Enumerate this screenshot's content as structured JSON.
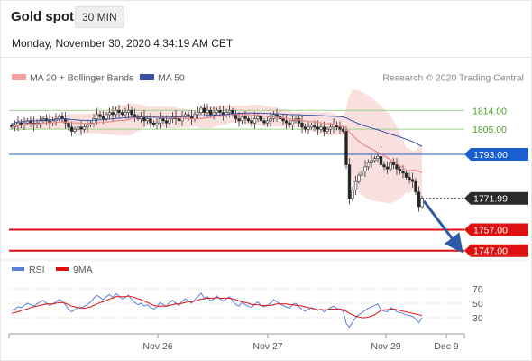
{
  "header": {
    "title": "Gold spot",
    "timeframe": "30 MIN",
    "datetime": "Monday, November 30, 2020 4:34:19 AM CET"
  },
  "legend": {
    "ma20": "MA 20 + Bollinger Bands",
    "ma50": "MA 50",
    "credit": "Research © 2020 Trading Central",
    "rsi": "RSI",
    "rsi_ma": "9MA"
  },
  "colors": {
    "ma20": "#e88c8c",
    "bands": "#f7c9c9",
    "ma50": "#3a4fa0",
    "resistance_green": "#9fd08a",
    "support_red": "#dd1111",
    "pivot_blue": "#1a5fd0",
    "current_dark": "#2b2b2b",
    "arrow": "#2e5aa8",
    "rsi_line": "#5a7fd6",
    "rsi_ma_line": "#dd1111"
  },
  "chart_data": [
    {
      "type": "candlestick",
      "title": "Gold spot",
      "x_ticks": [
        "Nov 26",
        "Nov 27",
        "Nov 29",
        "Dec 9"
      ],
      "ylim": [
        1737,
        1830
      ],
      "levels": [
        {
          "value": 1814.0,
          "label": "1814.00",
          "kind": "resistance"
        },
        {
          "value": 1805.0,
          "label": "1805.00",
          "kind": "resistance"
        },
        {
          "value": 1793.0,
          "label": "1793.00",
          "kind": "pivot"
        },
        {
          "value": 1771.99,
          "label": "1771.99",
          "kind": "current"
        },
        {
          "value": 1757.0,
          "label": "1757.00",
          "kind": "support"
        },
        {
          "value": 1747.0,
          "label": "1747.00",
          "kind": "support"
        }
      ],
      "forecast_arrow": {
        "from": 1771.99,
        "to": 1747.0
      },
      "close": [
        1806,
        1807,
        1808,
        1807,
        1808,
        1809,
        1808,
        1807,
        1808,
        1809,
        1810,
        1809,
        1808,
        1809,
        1810,
        1811,
        1810,
        1808,
        1806,
        1804,
        1805,
        1806,
        1805,
        1806,
        1807,
        1808,
        1810,
        1812,
        1811,
        1810,
        1812,
        1813,
        1812,
        1814,
        1813,
        1812,
        1813,
        1814,
        1812,
        1811,
        1810,
        1811,
        1809,
        1810,
        1808,
        1807,
        1808,
        1810,
        1809,
        1808,
        1810,
        1811,
        1810,
        1809,
        1811,
        1812,
        1811,
        1810,
        1812,
        1813,
        1815,
        1813,
        1814,
        1812,
        1813,
        1814,
        1813,
        1812,
        1813,
        1814,
        1812,
        1810,
        1809,
        1811,
        1810,
        1809,
        1808,
        1810,
        1811,
        1809,
        1808,
        1809,
        1810,
        1812,
        1811,
        1810,
        1809,
        1808,
        1807,
        1809,
        1810,
        1808,
        1806,
        1805,
        1806,
        1807,
        1806,
        1805,
        1806,
        1804,
        1805,
        1806,
        1807,
        1806,
        1805,
        1804,
        1788,
        1772,
        1776,
        1780,
        1783,
        1785,
        1787,
        1789,
        1790,
        1791,
        1792,
        1788,
        1787,
        1786,
        1789,
        1788,
        1786,
        1785,
        1784,
        1782,
        1781,
        1780,
        1775,
        1768,
        1772
      ]
    },
    {
      "type": "line",
      "title": "RSI",
      "series": [
        {
          "name": "RSI"
        },
        {
          "name": "9MA"
        }
      ],
      "y_ticks": [
        70,
        50,
        30
      ],
      "ylim": [
        0,
        100
      ],
      "rsi_values": [
        40,
        42,
        45,
        44,
        47,
        50,
        48,
        46,
        49,
        52,
        54,
        50,
        47,
        49,
        52,
        55,
        53,
        48,
        42,
        38,
        41,
        44,
        43,
        46,
        48,
        52,
        57,
        61,
        58,
        55,
        59,
        62,
        58,
        63,
        60,
        56,
        58,
        61,
        55,
        51,
        48,
        50,
        46,
        48,
        44,
        42,
        45,
        51,
        48,
        46,
        51,
        54,
        50,
        47,
        53,
        56,
        53,
        50,
        55,
        59,
        64,
        57,
        59,
        53,
        56,
        60,
        56,
        53,
        56,
        59,
        53,
        48,
        46,
        51,
        48,
        46,
        44,
        49,
        52,
        47,
        45,
        47,
        50,
        55,
        52,
        49,
        47,
        45,
        43,
        48,
        50,
        45,
        41,
        39,
        42,
        44,
        42,
        40,
        42,
        38,
        41,
        44,
        46,
        43,
        41,
        39,
        22,
        17,
        24,
        30,
        34,
        37,
        40,
        43,
        45,
        47,
        49,
        41,
        39,
        38,
        44,
        42,
        38,
        37,
        36,
        34,
        33,
        32,
        28,
        23,
        30
      ],
      "ma_values": [
        36,
        37,
        38,
        40,
        41,
        42,
        44,
        45,
        46,
        47,
        48,
        49,
        49,
        49,
        50,
        51,
        51,
        50,
        48,
        46,
        45,
        44,
        44,
        43,
        44,
        45,
        47,
        49,
        51,
        52,
        54,
        56,
        57,
        59,
        59,
        59,
        59,
        60,
        59,
        58,
        56,
        55,
        53,
        51,
        49,
        47,
        46,
        46,
        46,
        46,
        47,
        48,
        49,
        49,
        50,
        51,
        52,
        52,
        53,
        54,
        56,
        56,
        57,
        57,
        57,
        58,
        57,
        57,
        57,
        57,
        56,
        55,
        53,
        52,
        51,
        50,
        48,
        48,
        48,
        47,
        47,
        47,
        47,
        48,
        49,
        49,
        49,
        49,
        48,
        48,
        47,
        47,
        46,
        45,
        44,
        43,
        42,
        41,
        41,
        41,
        41,
        42,
        42,
        42,
        42,
        41,
        39,
        36,
        34,
        32,
        31,
        30,
        30,
        31,
        32,
        34,
        37,
        40,
        41,
        41,
        42,
        42,
        41,
        40,
        39,
        38,
        37,
        36,
        35,
        34,
        33
      ]
    }
  ]
}
